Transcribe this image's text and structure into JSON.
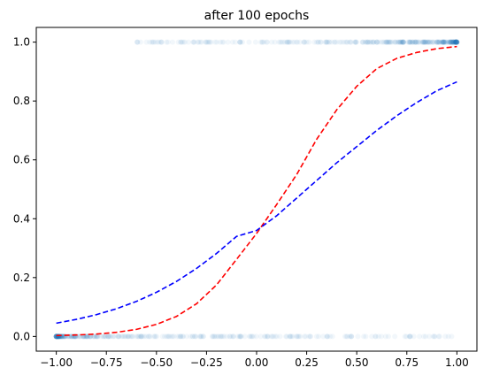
{
  "chart_data": {
    "type": "scatter",
    "title": "after 100 epochs",
    "xlabel": "",
    "ylabel": "",
    "xlim": [
      -1.1,
      1.1
    ],
    "ylim": [
      -0.05,
      1.05
    ],
    "x_ticks": [
      -1.0,
      -0.75,
      -0.5,
      -0.25,
      0.0,
      0.25,
      0.5,
      0.75,
      1.0
    ],
    "x_tick_labels": [
      "−1.00",
      "−0.75",
      "−0.50",
      "−0.25",
      "0.00",
      "0.25",
      "0.50",
      "0.75",
      "1.00"
    ],
    "y_ticks": [
      0.0,
      0.2,
      0.4,
      0.6,
      0.8,
      1.0
    ],
    "y_tick_labels": [
      "0.0",
      "0.2",
      "0.4",
      "0.6",
      "0.8",
      "1.0"
    ],
    "grid": false,
    "series": [
      {
        "kind": "scatter",
        "color": "#1f77b4",
        "alpha": 0.06,
        "points": {
          "y1_x_range": [
            -0.63,
            1.0
          ],
          "y0_x_range": [
            -1.0,
            0.98
          ]
        }
      },
      {
        "kind": "dashed-line",
        "color": "#ff0000",
        "x": [
          -1.0,
          -0.9,
          -0.8,
          -0.7,
          -0.6,
          -0.5,
          -0.4,
          -0.3,
          -0.2,
          -0.1,
          0.0,
          0.1,
          0.2,
          0.3,
          0.4,
          0.5,
          0.6,
          0.7,
          0.8,
          0.9,
          1.0
        ],
        "y": [
          0.003,
          0.005,
          0.008,
          0.014,
          0.024,
          0.041,
          0.068,
          0.111,
          0.175,
          0.262,
          0.35,
          0.448,
          0.55,
          0.67,
          0.77,
          0.85,
          0.91,
          0.945,
          0.965,
          0.978,
          0.985
        ]
      },
      {
        "kind": "dashed-line",
        "color": "#0000ff",
        "x": [
          -1.0,
          -0.9,
          -0.8,
          -0.7,
          -0.6,
          -0.5,
          -0.4,
          -0.3,
          -0.2,
          -0.1,
          0.0,
          0.1,
          0.2,
          0.3,
          0.4,
          0.5,
          0.6,
          0.7,
          0.8,
          0.9,
          1.0
        ],
        "y": [
          0.045,
          0.058,
          0.074,
          0.094,
          0.119,
          0.15,
          0.187,
          0.231,
          0.282,
          0.34,
          0.36,
          0.41,
          0.47,
          0.53,
          0.59,
          0.645,
          0.7,
          0.75,
          0.795,
          0.835,
          0.865
        ]
      }
    ]
  }
}
